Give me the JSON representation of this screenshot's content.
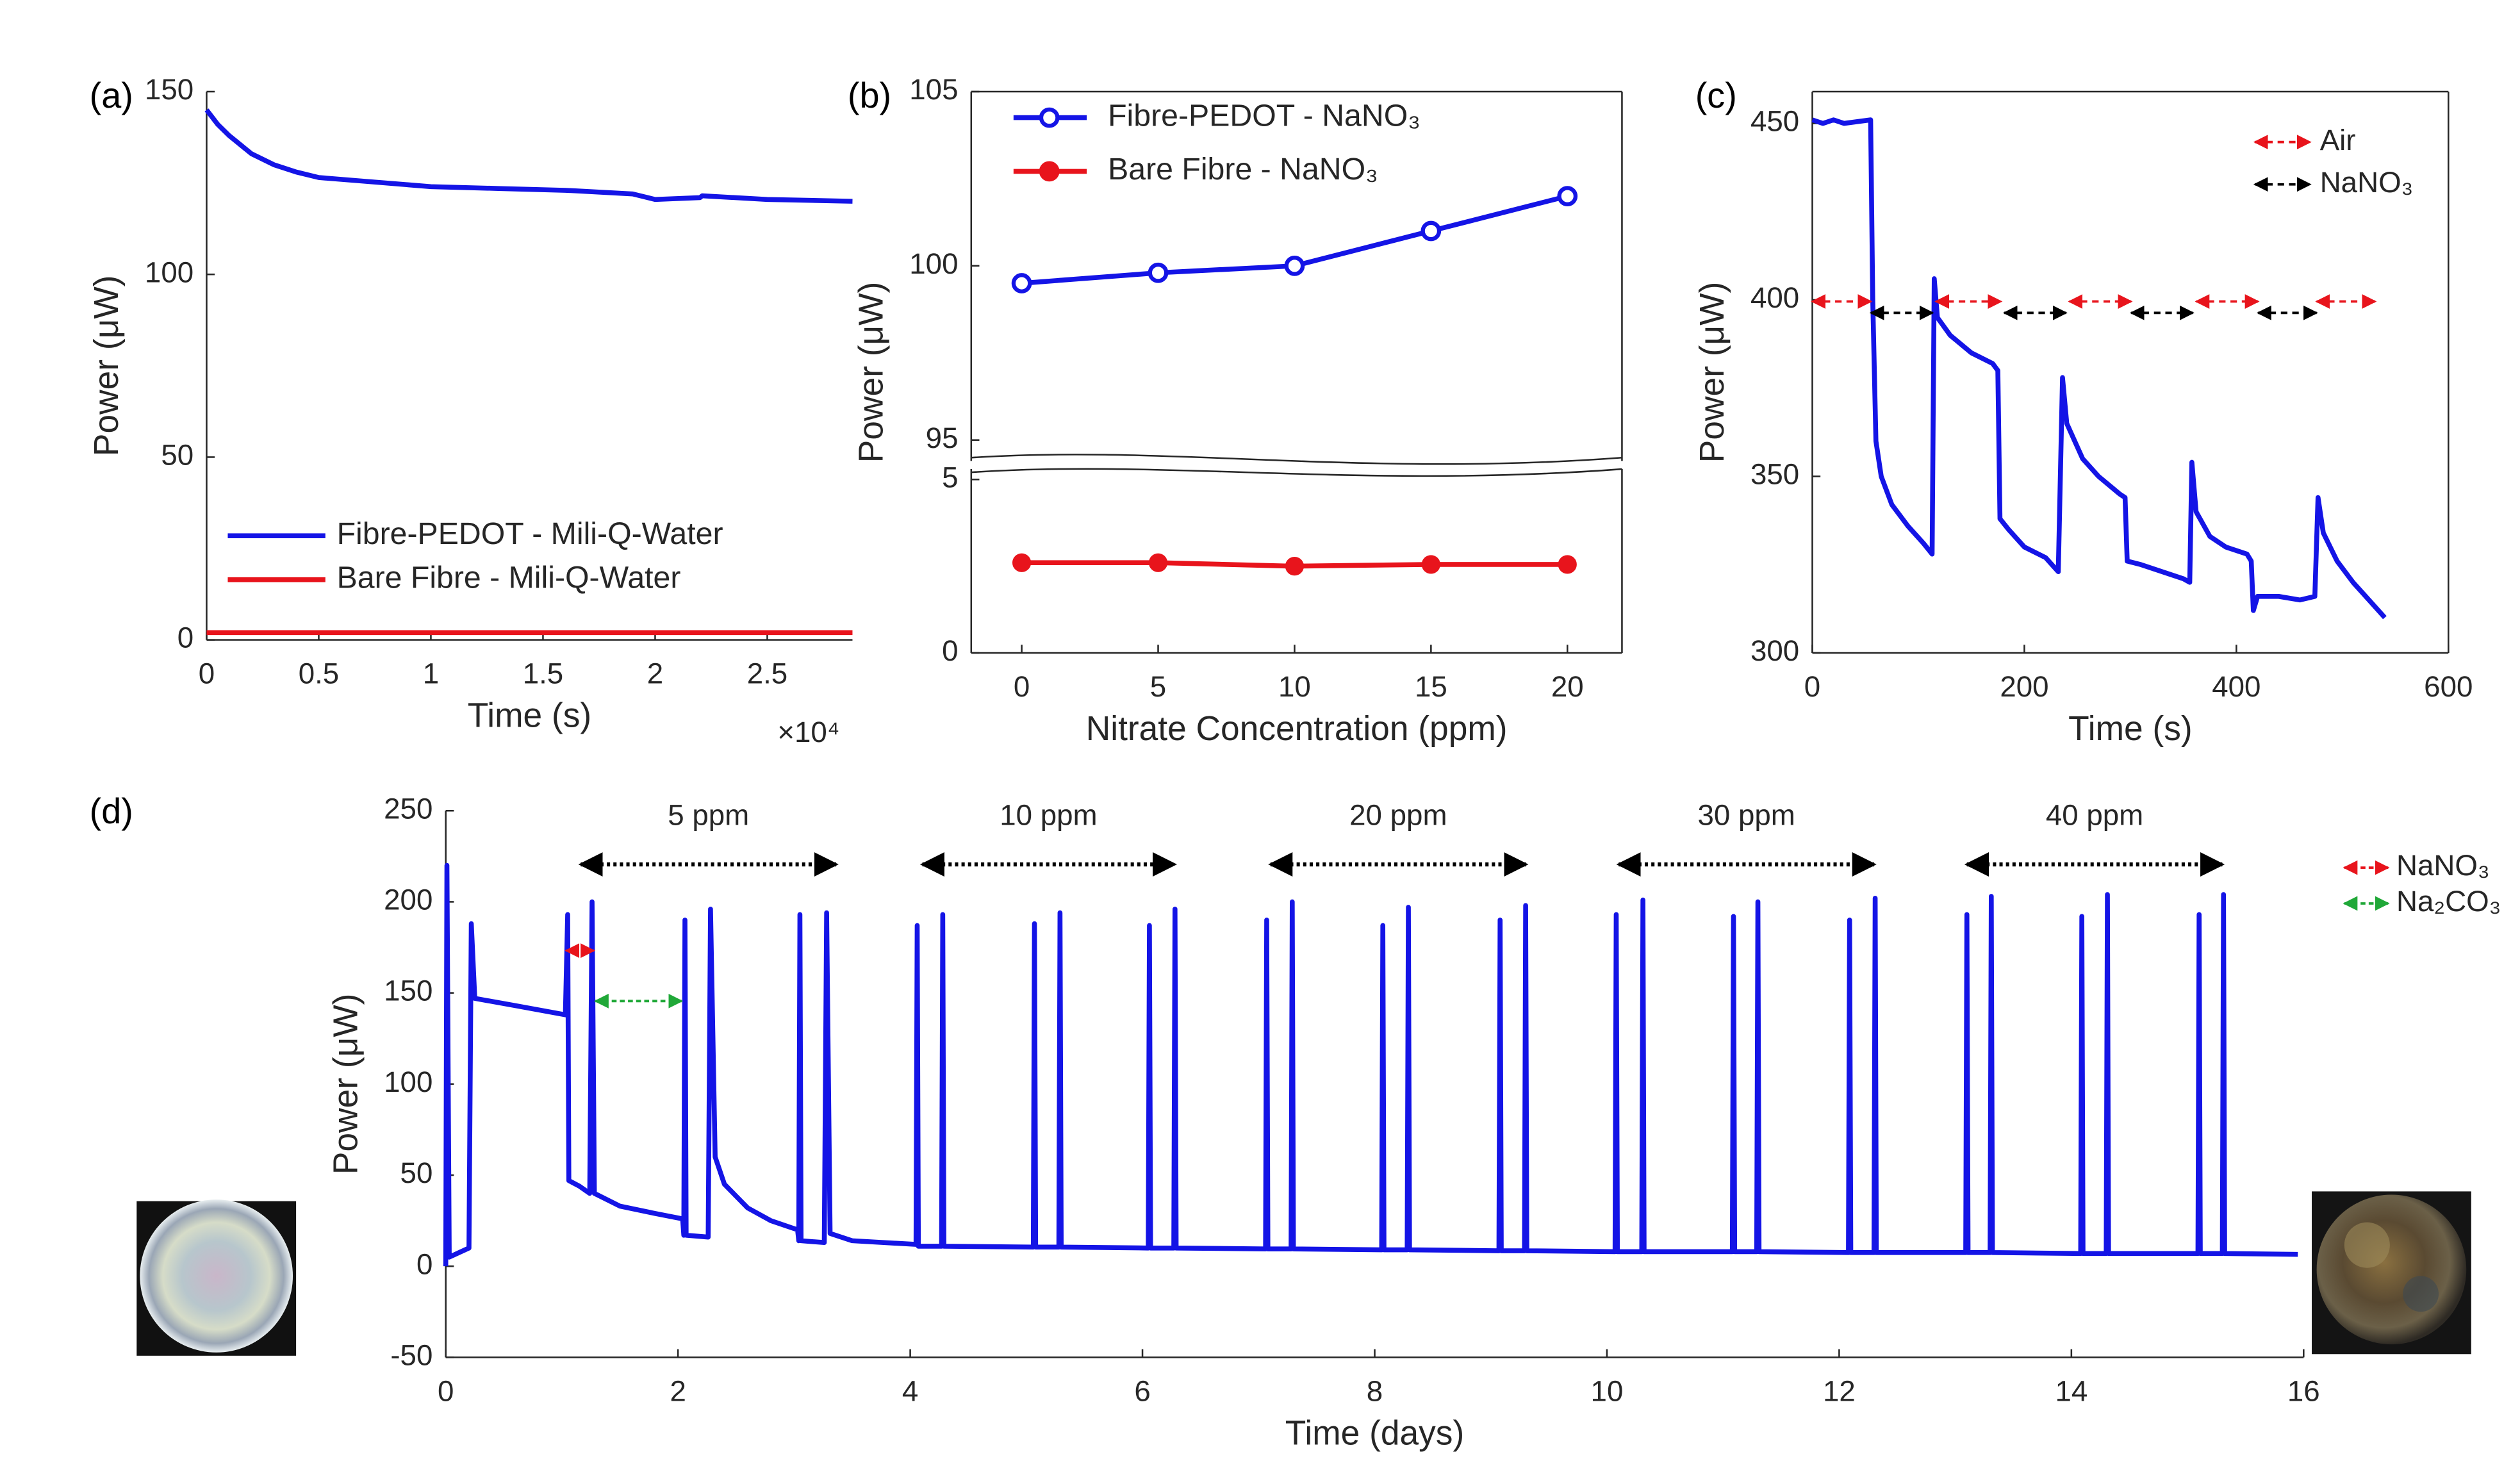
{
  "chart_data": [
    {
      "type": "line",
      "panel_label": "(a)",
      "x_label": "Time (s)",
      "y_label": "Power (μW)",
      "x_multiplier": "×10⁴",
      "xlim": [
        0,
        28800
      ],
      "ylim": [
        0,
        150
      ],
      "xticks": [
        0,
        {
          "value": 5000,
          "label": "0.5"
        },
        {
          "value": 10000,
          "label": "1"
        },
        {
          "value": 15000,
          "label": "1.5"
        },
        {
          "value": 20000,
          "label": "2"
        },
        {
          "value": 25000,
          "label": "2.5"
        }
      ],
      "yticks": [
        0,
        50,
        100,
        150
      ],
      "box": false,
      "legend_loc": "lower left",
      "x": [
        0,
        500,
        1000,
        2000,
        3000,
        4000,
        5000,
        7000,
        10000,
        13000,
        16000,
        19000,
        20000,
        22000,
        22100,
        25000,
        28800
      ],
      "series": [
        {
          "name": "Fibre-PEDOT - Mili-Q-Water",
          "color": "#1414e6",
          "values": [
            145,
            141,
            138,
            133,
            130,
            128,
            126.5,
            125.5,
            124,
            123.5,
            123,
            122,
            120.5,
            121,
            121.5,
            120.5,
            120
          ]
        },
        {
          "name": "Bare Fibre - Mili-Q-Water",
          "color": "#e8141c",
          "values": [
            2,
            2,
            2,
            2,
            2,
            2,
            2,
            2,
            2,
            2,
            2,
            2,
            2,
            2,
            2,
            2,
            2
          ]
        }
      ]
    },
    {
      "type": "line",
      "panel_label": "(b)",
      "x_label": "Nitrate Concentration (ppm)",
      "y_label": "Power (μW)",
      "xlim": [
        -1.85,
        22
      ],
      "ylim_lower": [
        0,
        5.3
      ],
      "ylim_upper": [
        94.4,
        105
      ],
      "xticks": [
        0,
        5,
        10,
        15,
        20
      ],
      "yticks_lower": [
        0,
        5
      ],
      "yticks_upper": [
        95,
        100,
        105
      ],
      "box": true,
      "legend_loc": "upper left",
      "x": [
        0,
        5,
        10,
        15,
        20
      ],
      "series": [
        {
          "name": "Fibre-PEDOT - NaNO₃",
          "color": "#1414e6",
          "marker": "open-circle",
          "values": [
            99.5,
            99.8,
            100,
            101,
            102
          ]
        },
        {
          "name": "Bare Fibre - NaNO₃",
          "color": "#e8141c",
          "marker": "filled-circle",
          "values": [
            2.6,
            2.6,
            2.5,
            2.55,
            2.55
          ]
        }
      ]
    },
    {
      "type": "line",
      "panel_label": "(c)",
      "x_label": "Time (s)",
      "y_label": "Power (μW)",
      "xlim": [
        0,
        600
      ],
      "ylim": [
        300,
        459
      ],
      "xticks": [
        0,
        200,
        400,
        600
      ],
      "yticks": [
        300,
        350,
        400,
        450
      ],
      "box": true,
      "arrow_legend": [
        {
          "name": "Air",
          "color": "#e8141c"
        },
        {
          "name": "NaNO₃",
          "color": "#000000"
        }
      ],
      "x": [
        0,
        10,
        20,
        30,
        55,
        57,
        60,
        65,
        75,
        90,
        105,
        113,
        115,
        118,
        130,
        150,
        170,
        175,
        177,
        185,
        200,
        220,
        232,
        236,
        240,
        255,
        270,
        290,
        295,
        297,
        310,
        330,
        350,
        356,
        358,
        362,
        375,
        390,
        410,
        414,
        416,
        420,
        440,
        460,
        474,
        477,
        482,
        495,
        510,
        525,
        540
      ],
      "series": [
        {
          "color": "#1414e6",
          "values": [
            451,
            450,
            451,
            450,
            451,
            400,
            360,
            350,
            342,
            336,
            331,
            328,
            406,
            395,
            390,
            385,
            382,
            380,
            338,
            335,
            330,
            327,
            323,
            378,
            365,
            355,
            350,
            345,
            344,
            326,
            325,
            323,
            321,
            320,
            354,
            340,
            333,
            330,
            328,
            326,
            312,
            316,
            316,
            315,
            316,
            344,
            334,
            326,
            320,
            315,
            310
          ]
        }
      ]
    },
    {
      "type": "line",
      "panel_label": "(d)",
      "x_label": "Time (days)",
      "y_label": "Power (μW)",
      "xlim": [
        0,
        16
      ],
      "ylim": [
        -50,
        250
      ],
      "xticks": [
        0,
        2,
        4,
        6,
        8,
        10,
        12,
        14,
        16
      ],
      "yticks": [
        -50,
        0,
        50,
        100,
        150,
        200,
        250
      ],
      "box": false,
      "annotations": [
        "5 ppm",
        "10 ppm",
        "20 ppm",
        "30 ppm",
        "40 ppm"
      ],
      "arrow_legend": [
        {
          "name": "NaNO₃",
          "color": "#e8141c"
        },
        {
          "name": "Na₂CO₃",
          "color": "#20a838"
        }
      ],
      "x": [
        0,
        0.01,
        0.03,
        0.2,
        0.22,
        0.25,
        0.6,
        1.03,
        1.05,
        1.06,
        1.15,
        1.24,
        1.26,
        1.28,
        1.5,
        1.8,
        2.04,
        2.05,
        2.06,
        2.07,
        2.26,
        2.28,
        2.32,
        2.4,
        2.6,
        2.8,
        3.03,
        3.04,
        3.05,
        3.06,
        3.26,
        3.28,
        3.31,
        3.5,
        4.05,
        4.06,
        4.07,
        4.27,
        4.28,
        4.29,
        5.06,
        5.07,
        5.08,
        5.28,
        5.29,
        5.3,
        6.05,
        6.06,
        6.07,
        6.27,
        6.28,
        6.29,
        7.06,
        7.07,
        7.08,
        7.28,
        7.29,
        7.3,
        8.06,
        8.07,
        8.08,
        8.28,
        8.29,
        8.3,
        9.07,
        9.08,
        9.09,
        9.29,
        9.3,
        9.31,
        10.07,
        10.08,
        10.09,
        10.3,
        10.31,
        10.32,
        11.08,
        11.09,
        11.1,
        11.29,
        11.3,
        11.31,
        12.08,
        12.09,
        12.1,
        12.3,
        12.31,
        12.32,
        13.09,
        13.1,
        13.11,
        13.3,
        13.31,
        13.32,
        14.08,
        14.09,
        14.1,
        14.3,
        14.31,
        14.32,
        15.09,
        15.1,
        15.11,
        15.3,
        15.31,
        15.32,
        15.95
      ],
      "series": [
        {
          "color": "#1414e6",
          "values": [
            0,
            220,
            5,
            10,
            188,
            147,
            143,
            138,
            193,
            47,
            44,
            40,
            200,
            40,
            33,
            29,
            26,
            17,
            190,
            17,
            16,
            196,
            60,
            45,
            32,
            25,
            20,
            14,
            193,
            14,
            13,
            194,
            18,
            14,
            12,
            187,
            11,
            11,
            193,
            11,
            10.5,
            188,
            10.5,
            10.5,
            194,
            10.5,
            10,
            187,
            10,
            10,
            196,
            10,
            9.5,
            190,
            9.5,
            9.5,
            200,
            9.5,
            9,
            187,
            9,
            9,
            197,
            9,
            8.5,
            190,
            8.5,
            8.5,
            198,
            8.5,
            8,
            193,
            8,
            8,
            201,
            8,
            8,
            192,
            8,
            8,
            200,
            8,
            7.5,
            190,
            7.5,
            7.5,
            202,
            7.5,
            7.5,
            193,
            7.5,
            7.5,
            203,
            7.5,
            7,
            192,
            7,
            7,
            204,
            7,
            7,
            193,
            7,
            7,
            204,
            7,
            6.5
          ]
        }
      ]
    }
  ]
}
